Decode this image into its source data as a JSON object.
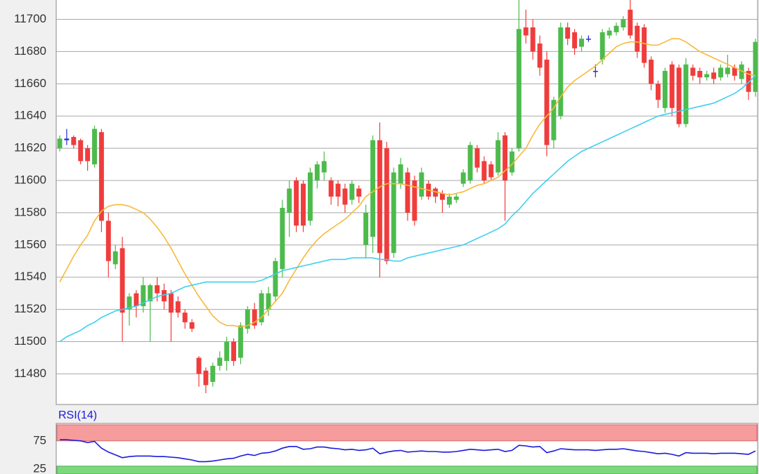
{
  "chart_data": [
    {
      "type": "candlestick",
      "ylim": [
        11461,
        11712
      ],
      "yticks": [
        11480,
        11500,
        11520,
        11540,
        11560,
        11580,
        11600,
        11620,
        11640,
        11660,
        11680,
        11700
      ],
      "grid": true,
      "up_color": "#4cbb4c",
      "down_color": "#f03c3c",
      "doji_color": "#2a2ad0",
      "open": [
        11620,
        11625,
        11627,
        11625,
        11620,
        11610,
        11630,
        11575,
        11548,
        11558,
        11520,
        11530,
        11522,
        11525,
        11535,
        11532,
        11530,
        11525,
        11518,
        11512,
        11490,
        11482,
        11475,
        11485,
        11488,
        11500,
        11490,
        11508,
        11520,
        11512,
        11520,
        11528,
        11545,
        11580,
        11600,
        11598,
        11575,
        11600,
        11605,
        11600,
        11598,
        11595,
        11588,
        11595,
        11560,
        11565,
        11625,
        11620,
        11555,
        11598,
        11605,
        11600,
        11590,
        11598,
        11595,
        11592,
        11585,
        11588,
        11598,
        11600,
        11620,
        11612,
        11610,
        11605,
        11628,
        11605,
        11620,
        11695,
        11695,
        11685,
        11675,
        11625,
        11640,
        11695,
        11692,
        11683,
        11688,
        11668,
        11675,
        11690,
        11692,
        11695,
        11706,
        11696,
        11695,
        11675,
        11660,
        11645,
        11672,
        11670,
        11635,
        11670,
        11668,
        11664,
        11667,
        11664,
        11666,
        11670,
        11663,
        11668,
        11655
      ],
      "high": [
        11628,
        11632,
        11628,
        11626,
        11622,
        11634,
        11632,
        11580,
        11560,
        11565,
        11530,
        11532,
        11540,
        11536,
        11540,
        11536,
        11532,
        11528,
        11520,
        11514,
        11491,
        11484,
        11487,
        11494,
        11503,
        11502,
        11512,
        11522,
        11524,
        11532,
        11534,
        11552,
        11588,
        11600,
        11602,
        11600,
        11608,
        11612,
        11618,
        11602,
        11600,
        11598,
        11600,
        11597,
        11585,
        11628,
        11636,
        11624,
        11608,
        11614,
        11608,
        11603,
        11608,
        11600,
        11596,
        11594,
        11592,
        11592,
        11607,
        11624,
        11622,
        11615,
        11612,
        11630,
        11630,
        11620,
        11712,
        11706,
        11700,
        11690,
        11680,
        11652,
        11698,
        11698,
        11694,
        11690,
        11690,
        11672,
        11694,
        11695,
        11698,
        11702,
        11712,
        11698,
        11697,
        11677,
        11662,
        11670,
        11674,
        11672,
        11676,
        11672,
        11670,
        11668,
        11670,
        11672,
        11678,
        11672,
        11674,
        11670,
        11688
      ],
      "low": [
        11618,
        11622,
        11620,
        11610,
        11606,
        11608,
        11568,
        11540,
        11545,
        11500,
        11510,
        11515,
        11518,
        11500,
        11525,
        11520,
        11500,
        11515,
        11508,
        11506,
        11472,
        11468,
        11472,
        11482,
        11482,
        11485,
        11486,
        11505,
        11508,
        11510,
        11516,
        11525,
        11540,
        11565,
        11568,
        11568,
        11572,
        11595,
        11600,
        11585,
        11584,
        11580,
        11585,
        11586,
        11552,
        11555,
        11540,
        11548,
        11552,
        11595,
        11575,
        11572,
        11588,
        11588,
        11586,
        11580,
        11583,
        11586,
        11596,
        11598,
        11605,
        11598,
        11600,
        11603,
        11575,
        11603,
        11618,
        11685,
        11675,
        11665,
        11615,
        11620,
        11638,
        11684,
        11678,
        11680,
        11686,
        11664,
        11672,
        11688,
        11690,
        11693,
        11688,
        11676,
        11670,
        11656,
        11645,
        11642,
        11640,
        11633,
        11633,
        11662,
        11660,
        11662,
        11660,
        11662,
        11664,
        11662,
        11660,
        11650,
        11652
      ],
      "close": [
        11626,
        11626,
        11622,
        11612,
        11612,
        11632,
        11575,
        11550,
        11556,
        11518,
        11528,
        11522,
        11535,
        11535,
        11530,
        11525,
        11518,
        11518,
        11512,
        11508,
        11480,
        11473,
        11485,
        11490,
        11500,
        11488,
        11510,
        11520,
        11510,
        11530,
        11530,
        11550,
        11583,
        11595,
        11572,
        11572,
        11605,
        11610,
        11612,
        11590,
        11590,
        11585,
        11598,
        11590,
        11580,
        11625,
        11555,
        11550,
        11605,
        11610,
        11580,
        11575,
        11605,
        11590,
        11590,
        11588,
        11590,
        11590,
        11605,
        11622,
        11608,
        11600,
        11602,
        11625,
        11600,
        11618,
        11694,
        11690,
        11680,
        11670,
        11622,
        11650,
        11695,
        11688,
        11682,
        11688,
        11688,
        11668,
        11692,
        11693,
        11696,
        11700,
        11690,
        11680,
        11673,
        11660,
        11650,
        11668,
        11645,
        11635,
        11672,
        11665,
        11664,
        11666,
        11663,
        11670,
        11670,
        11665,
        11672,
        11655,
        11686
      ],
      "series": [
        {
          "color": "#f7b93a",
          "values": [
            11537,
            11545,
            11553,
            11560,
            11566,
            11575,
            11581,
            11584,
            11585,
            11585,
            11584,
            11582,
            11580,
            11576,
            11571,
            11565,
            11558,
            11550,
            11542,
            11535,
            11528,
            11522,
            11516,
            11512,
            11510,
            11510,
            11509,
            11510,
            11512,
            11515,
            11520,
            11525,
            11530,
            11538,
            11545,
            11552,
            11558,
            11563,
            11567,
            11570,
            11573,
            11576,
            11580,
            11584,
            11590,
            11593,
            11596,
            11598,
            11598,
            11598,
            11597,
            11596,
            11595,
            11594,
            11593,
            11592,
            11591,
            11592,
            11593,
            11595,
            11597,
            11598,
            11600,
            11602,
            11606,
            11610,
            11615,
            11620,
            11628,
            11635,
            11640,
            11645,
            11652,
            11658,
            11662,
            11665,
            11668,
            11671,
            11675,
            11679,
            11683,
            11685,
            11686,
            11686,
            11685,
            11684,
            11684,
            11686,
            11688,
            11688,
            11686,
            11683,
            11680,
            11678,
            11676,
            11674,
            11672,
            11670,
            11668,
            11666,
            11665
          ]
        },
        {
          "color": "#3ecff0",
          "values": [
            11500,
            11503,
            11505,
            11507,
            11510,
            11512,
            11515,
            11517,
            11519,
            11520,
            11521,
            11522,
            11524,
            11526,
            11528,
            11529,
            11530,
            11532,
            11534,
            11535,
            11536,
            11537,
            11537,
            11537,
            11537,
            11537,
            11537,
            11537,
            11537,
            11538,
            11540,
            11542,
            11544,
            11545,
            11546,
            11547,
            11548,
            11549,
            11550,
            11551,
            11551,
            11551,
            11552,
            11552,
            11552,
            11552,
            11551,
            11551,
            11550,
            11550,
            11552,
            11553,
            11554,
            11555,
            11556,
            11557,
            11558,
            11559,
            11560,
            11562,
            11564,
            11566,
            11568,
            11570,
            11573,
            11578,
            11582,
            11587,
            11592,
            11596,
            11600,
            11604,
            11608,
            11612,
            11615,
            11618,
            11620,
            11622,
            11624,
            11626,
            11628,
            11630,
            11632,
            11634,
            11636,
            11638,
            11640,
            11641,
            11642,
            11643,
            11644,
            11645,
            11646,
            11647,
            11648,
            11650,
            11652,
            11654,
            11657,
            11661,
            11665
          ]
        }
      ]
    },
    {
      "type": "line",
      "title": "RSI(14)",
      "ylim": [
        16,
        106
      ],
      "yticks": [
        25,
        75
      ],
      "overbought": 75,
      "oversold": 25,
      "overbought_color": "#f79c9c",
      "oversold_color": "#7dd87d",
      "series": [
        {
          "color": "#1a1ae0",
          "values": [
            77,
            77,
            76,
            75,
            72,
            74,
            62,
            55,
            50,
            45,
            47,
            48,
            48,
            48,
            47,
            47,
            46,
            45,
            43,
            41,
            38,
            38,
            39,
            41,
            43,
            44,
            48,
            51,
            49,
            53,
            54,
            57,
            62,
            65,
            65,
            60,
            61,
            64,
            64,
            62,
            61,
            59,
            60,
            58,
            59,
            62,
            52,
            55,
            57,
            58,
            55,
            56,
            57,
            56,
            56,
            55,
            55,
            56,
            58,
            60,
            59,
            58,
            59,
            60,
            56,
            58,
            67,
            66,
            64,
            65,
            54,
            57,
            61,
            60,
            59,
            59,
            59,
            58,
            59,
            60,
            60,
            61,
            59,
            57,
            56,
            54,
            52,
            53,
            51,
            48,
            54,
            53,
            53,
            53,
            52,
            53,
            53,
            53,
            52,
            51,
            57
          ]
        }
      ]
    }
  ]
}
